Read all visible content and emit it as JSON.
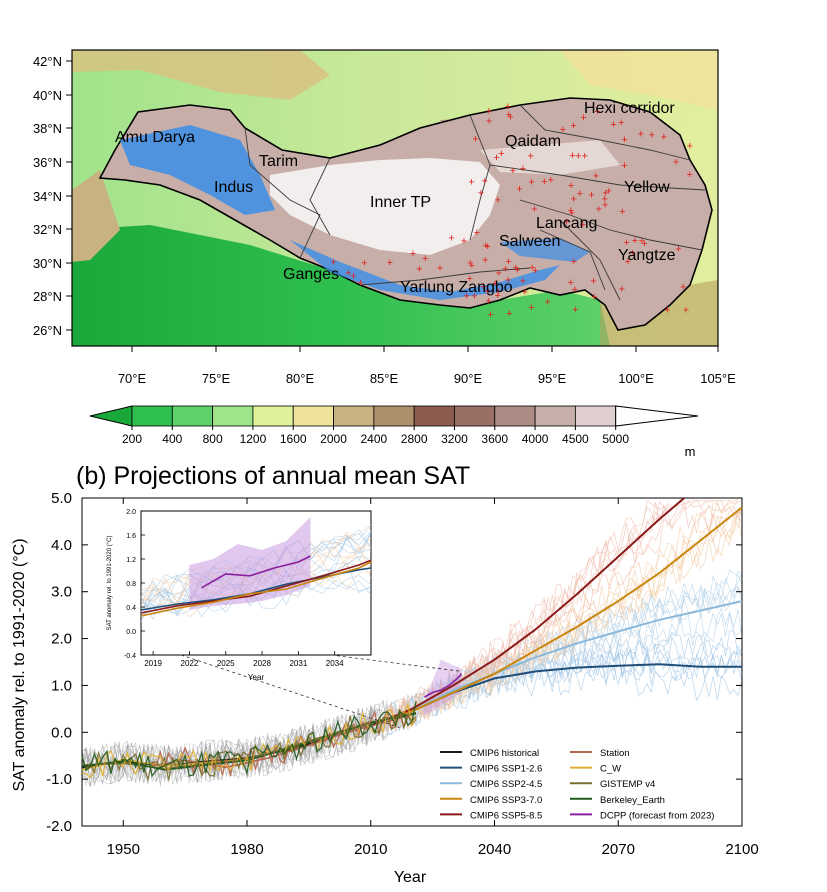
{
  "map": {
    "lat_ticks": [
      "42°N",
      "40°N",
      "38°N",
      "36°N",
      "34°N",
      "32°N",
      "30°N",
      "28°N",
      "26°N"
    ],
    "lon_ticks": [
      "70°E",
      "75°E",
      "80°E",
      "85°E",
      "90°E",
      "95°E",
      "100°E",
      "105°E"
    ],
    "basins": [
      {
        "name": "Amu Darya"
      },
      {
        "name": "Tarim"
      },
      {
        "name": "Indus"
      },
      {
        "name": "Inner TP"
      },
      {
        "name": "Qaidam"
      },
      {
        "name": "Hexi corridor"
      },
      {
        "name": "Yellow"
      },
      {
        "name": "Lancang"
      },
      {
        "name": "Salween"
      },
      {
        "name": "Yangtze"
      },
      {
        "name": "Ganges"
      },
      {
        "name": "Yarlung Zangbo"
      }
    ],
    "colorbar": {
      "labels": [
        "200",
        "400",
        "800",
        "1200",
        "1600",
        "2000",
        "2400",
        "2800",
        "3200",
        "3600",
        "4000",
        "4500",
        "5000"
      ],
      "unit": "m",
      "colors": [
        "#1aa83a",
        "#2fbf4f",
        "#5fd06a",
        "#9fe38a",
        "#ddf29a",
        "#efe29a",
        "#c9b282",
        "#ae8f6b",
        "#8c5d4f",
        "#9a6f66",
        "#ad8a84",
        "#c6aeaa",
        "#dfd0cf",
        "#ffffff"
      ]
    }
  },
  "chart_data": {
    "type": "line",
    "title": "(b) Projections of annual mean SAT",
    "xlabel": "Year",
    "ylabel": "SAT anomaly rel. to 1991-2020 (°C)",
    "xlim": [
      1940,
      2100
    ],
    "ylim": [
      -2.0,
      5.0
    ],
    "xticks": [
      "1950",
      "1980",
      "2010",
      "2040",
      "2070",
      "2100"
    ],
    "yticks": [
      "-2.0",
      "-1.0",
      "0.0",
      "1.0",
      "2.0",
      "3.0",
      "4.0",
      "5.0"
    ],
    "series": [
      {
        "name": "CMIP6 historical",
        "color": "#1a1a1a",
        "x": [
          1940,
          1950,
          1960,
          1970,
          1980,
          1990,
          2000,
          2010,
          2014
        ],
        "y": [
          -0.75,
          -0.62,
          -0.72,
          -0.62,
          -0.55,
          -0.38,
          -0.12,
          0.15,
          0.28
        ]
      },
      {
        "name": "CMIP6 SSP1-2.6",
        "color": "#1f4e79",
        "x": [
          2014,
          2020,
          2030,
          2040,
          2050,
          2060,
          2070,
          2080,
          2090,
          2100
        ],
        "y": [
          0.28,
          0.45,
          0.85,
          1.15,
          1.3,
          1.38,
          1.42,
          1.45,
          1.4,
          1.4
        ]
      },
      {
        "name": "CMIP6 SSP2-4.5",
        "color": "#8bb9dc",
        "x": [
          2014,
          2020,
          2030,
          2040,
          2050,
          2060,
          2070,
          2080,
          2090,
          2100
        ],
        "y": [
          0.28,
          0.45,
          0.9,
          1.25,
          1.6,
          1.9,
          2.15,
          2.4,
          2.6,
          2.8
        ]
      },
      {
        "name": "CMIP6 SSP3-7.0",
        "color": "#c8860f",
        "x": [
          2014,
          2020,
          2030,
          2040,
          2050,
          2060,
          2070,
          2080,
          2090,
          2100
        ],
        "y": [
          0.28,
          0.45,
          0.85,
          1.25,
          1.75,
          2.25,
          2.8,
          3.4,
          4.1,
          4.8
        ]
      },
      {
        "name": "CMIP6 SSP5-8.5",
        "color": "#8b1a1a",
        "x": [
          2014,
          2020,
          2030,
          2040,
          2050,
          2060,
          2070,
          2080,
          2086
        ],
        "y": [
          0.28,
          0.5,
          1.0,
          1.55,
          2.2,
          2.95,
          3.75,
          4.55,
          5.0
        ]
      },
      {
        "name": "Station",
        "color": "#b5654a",
        "x": [
          1957,
          1965,
          1975,
          1985,
          1995,
          2005,
          2015,
          2021
        ],
        "y": [
          -0.72,
          -0.6,
          -0.75,
          -0.55,
          -0.28,
          0.02,
          0.25,
          0.4
        ]
      },
      {
        "name": "C_W",
        "color": "#e0b030",
        "x": [
          1940,
          1950,
          1960,
          1970,
          1980,
          1990,
          2000,
          2010,
          2021
        ],
        "y": [
          -0.8,
          -0.58,
          -0.72,
          -0.65,
          -0.58,
          -0.35,
          -0.05,
          0.2,
          0.4
        ]
      },
      {
        "name": "GISTEMP v4",
        "color": "#7a7030",
        "x": [
          1940,
          1950,
          1960,
          1970,
          1980,
          1990,
          2000,
          2010,
          2021
        ],
        "y": [
          -0.7,
          -0.66,
          -0.78,
          -0.68,
          -0.58,
          -0.32,
          -0.05,
          0.22,
          0.42
        ]
      },
      {
        "name": "Berkeley_Earth",
        "color": "#1f5a1f",
        "x": [
          1940,
          1950,
          1960,
          1970,
          1980,
          1990,
          2000,
          2010,
          2021
        ],
        "y": [
          -0.72,
          -0.62,
          -0.8,
          -0.7,
          -0.6,
          -0.35,
          -0.08,
          0.2,
          0.4
        ]
      },
      {
        "name": "DCPP (forecast from 2023)",
        "color": "#8a1f9f",
        "x": [
          2023,
          2025,
          2027,
          2029,
          2031,
          2032
        ],
        "y": [
          0.75,
          0.85,
          0.9,
          1.0,
          1.15,
          1.25
        ]
      }
    ],
    "inset": {
      "xlim": [
        2018,
        2037
      ],
      "ylim": [
        -0.4,
        2.0
      ],
      "xticks": [
        "2019",
        "2022",
        "2025",
        "2028",
        "2031",
        "2034"
      ],
      "yticks": [
        "-0.4",
        "0.0",
        "0.4",
        "0.8",
        "1.2",
        "1.6",
        "2.0"
      ],
      "xlabel": "Year",
      "ylabel": "SAT anomaly rel. to 1991-2020 (°C)",
      "lines": [
        {
          "color": "#8a1f9f",
          "x": [
            2023,
            2025,
            2027,
            2029,
            2031,
            2032
          ],
          "y": [
            0.72,
            0.95,
            0.92,
            1.05,
            1.15,
            1.25
          ]
        },
        {
          "color": "#1f4e79",
          "x": [
            2018,
            2021,
            2024,
            2027,
            2030,
            2033,
            2036,
            2037
          ],
          "y": [
            0.35,
            0.45,
            0.52,
            0.62,
            0.78,
            0.9,
            1.02,
            1.05
          ]
        },
        {
          "color": "#8b1a1a",
          "x": [
            2018,
            2021,
            2024,
            2027,
            2030,
            2033,
            2036,
            2037
          ],
          "y": [
            0.3,
            0.42,
            0.5,
            0.58,
            0.75,
            0.92,
            1.1,
            1.18
          ]
        },
        {
          "color": "#c8860f",
          "x": [
            2018,
            2021,
            2024,
            2027,
            2030,
            2033,
            2036,
            2037
          ],
          "y": [
            0.25,
            0.38,
            0.48,
            0.62,
            0.7,
            0.88,
            1.05,
            1.15
          ]
        }
      ],
      "band": {
        "color": "#c89ae0",
        "x": [
          2022,
          2024,
          2026,
          2028,
          2030,
          2032
        ],
        "lower": [
          0.35,
          0.42,
          0.45,
          0.5,
          0.6,
          0.75
        ],
        "upper": [
          1.1,
          1.2,
          1.45,
          1.35,
          1.5,
          1.9
        ]
      }
    }
  }
}
